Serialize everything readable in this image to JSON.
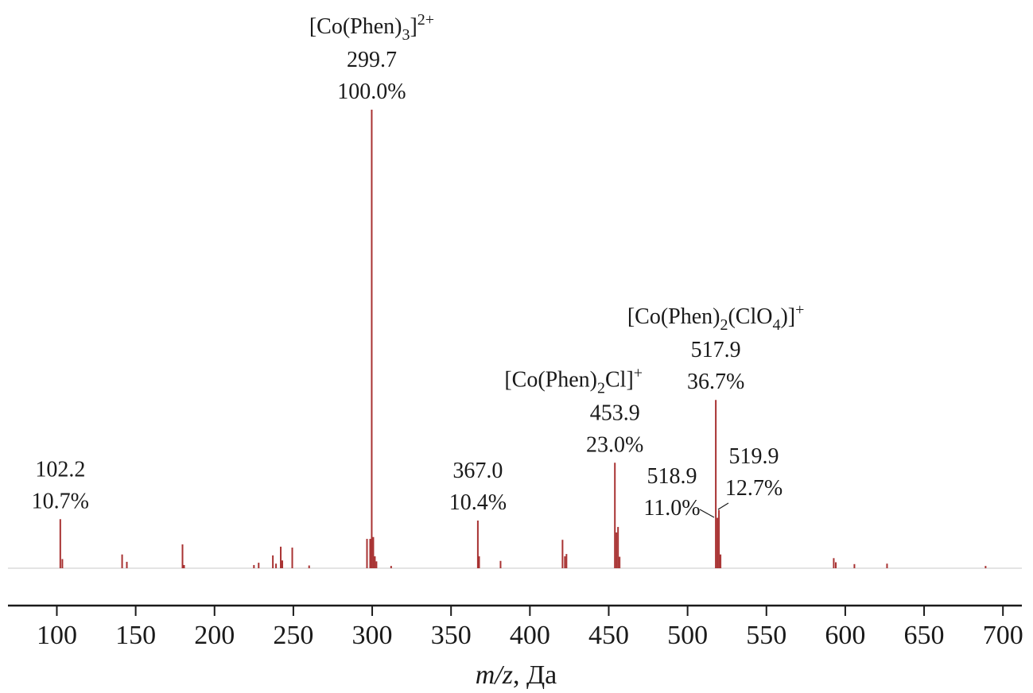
{
  "chart_data": {
    "type": "stick",
    "x_axis_label": [
      {
        "t": "m/z",
        "style": "italic"
      },
      {
        "t": ", Да"
      }
    ],
    "x": [
      102.2,
      103.5,
      141.4,
      144.4,
      179.7,
      180.7,
      225.0,
      228.0,
      237.0,
      239.0,
      242.0,
      243.0,
      249.3,
      260.0,
      296.7,
      298.7,
      299.7,
      300.7,
      301.7,
      302.7,
      312.0,
      367.0,
      367.8,
      381.4,
      420.7,
      422.2,
      423.2,
      453.9,
      454.9,
      455.9,
      456.9,
      517.9,
      518.9,
      519.9,
      520.9,
      592.7,
      594.0,
      605.8,
      626.5,
      689.0
    ],
    "values": [
      10.7,
      2.0,
      3.0,
      1.4,
      5.2,
      0.7,
      0.7,
      1.2,
      2.8,
      1.0,
      4.7,
      1.7,
      4.5,
      0.6,
      6.4,
      6.4,
      100.0,
      6.8,
      2.6,
      1.5,
      0.5,
      10.4,
      2.6,
      1.6,
      6.2,
      2.6,
      3.1,
      23.0,
      7.8,
      9.0,
      2.5,
      36.7,
      11.0,
      12.7,
      3.0,
      2.2,
      1.3,
      0.9,
      1.0,
      0.5
    ],
    "x_labels": [
      "102.2",
      null,
      null,
      null,
      null,
      null,
      null,
      null,
      null,
      null,
      null,
      null,
      null,
      null,
      null,
      null,
      "299.7",
      null,
      null,
      null,
      null,
      "367.0",
      null,
      null,
      null,
      null,
      null,
      "453.9",
      null,
      null,
      null,
      "517.9",
      "518.9",
      "519.9",
      null,
      null,
      null,
      null,
      null,
      null
    ],
    "value_labels": [
      "10.7%",
      null,
      null,
      null,
      null,
      null,
      null,
      null,
      null,
      null,
      null,
      null,
      null,
      null,
      null,
      null,
      "100.0%",
      null,
      null,
      null,
      null,
      "10.4%",
      null,
      null,
      null,
      null,
      null,
      "23.0%",
      null,
      null,
      null,
      "36.7%",
      "11.0%",
      "12.7%",
      null,
      null,
      null,
      null,
      null,
      null
    ],
    "ions": [
      null,
      null,
      null,
      null,
      null,
      null,
      null,
      null,
      null,
      null,
      null,
      null,
      null,
      null,
      null,
      null,
      [
        {
          "t": "[Co(Phen)"
        },
        {
          "t": "3",
          "pos": "sub"
        },
        {
          "t": "]"
        },
        {
          "t": "2+",
          "pos": "sup"
        }
      ],
      null,
      null,
      null,
      null,
      null,
      null,
      null,
      null,
      null,
      null,
      [
        {
          "t": "[Co(Phen)"
        },
        {
          "t": "2",
          "pos": "sub"
        },
        {
          "t": "Cl]"
        },
        {
          "t": "+",
          "pos": "sup"
        }
      ],
      null,
      null,
      null,
      [
        {
          "t": "[Co(Phen)"
        },
        {
          "t": "2",
          "pos": "sub"
        },
        {
          "t": "(ClO"
        },
        {
          "t": "4",
          "pos": "sub"
        },
        {
          "t": ")]"
        },
        {
          "t": "+",
          "pos": "sup"
        }
      ],
      null,
      null,
      null,
      null,
      null,
      null,
      null,
      null
    ],
    "color": "#a83232",
    "xlim": [
      69,
      712
    ],
    "xticks": [
      100,
      150,
      200,
      250,
      300,
      350,
      400,
      450,
      500,
      550,
      600,
      650,
      700
    ],
    "ylim": [
      0,
      100
    ]
  }
}
